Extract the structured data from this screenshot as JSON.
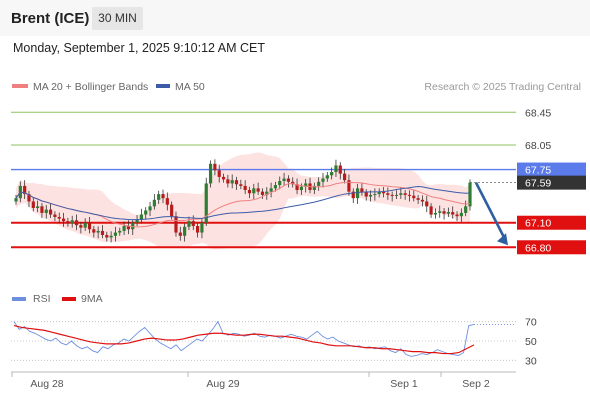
{
  "header": {
    "symbol": "Brent (ICE)",
    "timeframe": "30 MIN"
  },
  "datetime": "Monday, September 1, 2025 9:10:12 AM CET",
  "colors": {
    "price_line": "#5b7bea",
    "support_resistance": "#e01010",
    "upper_level": "#8fc35f",
    "current_price_box": "#333333",
    "arrow": "#2e5f9e",
    "ma20_bollinger": "#f08080",
    "bollinger_fill": "#fde2e2",
    "ma50": "#3d5ca8",
    "rsi": "#6c8fe0",
    "rsi_9ma": "#e01010",
    "candle_up": "#2e7d32",
    "candle_down": "#b71c1c"
  },
  "chart_data": [
    {
      "type": "candlestick",
      "legend": [
        {
          "name": "MA 20 + Bollinger Bands",
          "color": "#f08080"
        },
        {
          "name": "MA 50",
          "color": "#3d5ca8"
        }
      ],
      "credit": "Research © 2025 Trading Central",
      "levels": [
        {
          "label": "68.45",
          "value": 68.45,
          "color": "#8fc35f",
          "kind": "resistance"
        },
        {
          "label": "68.05",
          "value": 68.05,
          "color": "#8fc35f",
          "kind": "resistance"
        },
        {
          "label": "67.75",
          "value": 67.75,
          "color": "#5b7bea",
          "kind": "pivot"
        },
        {
          "label": "67.59",
          "value": 67.59,
          "color": "#333333",
          "kind": "current_price"
        },
        {
          "label": "67.10",
          "value": 67.1,
          "color": "#e01010",
          "kind": "target"
        },
        {
          "label": "66.80",
          "value": 66.8,
          "color": "#e01010",
          "kind": "target"
        }
      ],
      "ylim": [
        66.4,
        68.6
      ],
      "x_ticks": [
        "Aug 28",
        "Aug 29",
        "Sep 1",
        "Sep 2"
      ],
      "forecast_arrow": {
        "from": 67.59,
        "to": 66.8,
        "direction": "down"
      },
      "series_close": [
        67.4,
        67.55,
        67.45,
        67.36,
        67.28,
        67.3,
        67.22,
        67.26,
        67.2,
        67.17,
        67.15,
        67.12,
        67.09,
        67.13,
        67.07,
        67.04,
        67.1,
        67.02,
        66.98,
        67.0,
        66.95,
        66.92,
        66.94,
        66.98,
        67.0,
        67.06,
        67.02,
        67.1,
        67.14,
        67.2,
        67.25,
        67.3,
        67.38,
        67.45,
        67.4,
        67.32,
        67.18,
        66.98,
        66.94,
        67.05,
        67.12,
        67.06,
        66.98,
        67.1,
        67.58,
        67.82,
        67.74,
        67.66,
        67.63,
        67.58,
        67.62,
        67.57,
        67.55,
        67.5,
        67.46,
        67.52,
        67.48,
        67.44,
        67.48,
        67.52,
        67.56,
        67.61,
        67.64,
        67.6,
        67.57,
        67.5,
        67.54,
        67.58,
        67.5,
        67.55,
        67.6,
        67.64,
        67.68,
        67.72,
        67.8,
        67.7,
        67.62,
        67.48,
        67.4,
        67.52,
        67.47,
        67.42,
        67.44,
        67.45,
        67.48,
        67.46,
        67.44,
        67.43,
        67.44,
        67.46,
        67.44,
        67.43,
        67.4,
        67.38,
        67.36,
        67.3,
        67.2,
        67.22,
        67.24,
        67.21,
        67.23,
        67.2,
        67.18,
        67.22,
        67.3,
        67.59
      ]
    },
    {
      "type": "line",
      "legend": [
        {
          "name": "RSI",
          "color": "#6c8fe0"
        },
        {
          "name": "9MA",
          "color": "#e01010"
        }
      ],
      "ylim": [
        20,
        80
      ],
      "y_ticks": [
        70,
        50,
        30
      ],
      "series": [
        {
          "name": "RSI",
          "values": [
            70,
            62,
            65,
            60,
            58,
            55,
            52,
            50,
            53,
            48,
            46,
            50,
            45,
            42,
            44,
            40,
            38,
            44,
            42,
            46,
            48,
            52,
            50,
            55,
            60,
            64,
            58,
            52,
            48,
            45,
            42,
            46,
            40,
            44,
            48,
            52,
            50,
            56,
            62,
            70,
            58,
            56,
            58,
            57,
            55,
            56,
            58,
            55,
            54,
            56,
            55,
            53,
            55,
            57,
            55,
            54,
            52,
            56,
            60,
            55,
            52,
            54,
            50,
            48,
            46,
            44,
            45,
            43,
            44,
            42,
            43,
            44,
            40,
            38,
            42,
            36,
            34,
            35,
            37,
            36,
            38,
            41,
            39,
            37,
            36,
            35,
            38,
            66,
            67
          ]
        },
        {
          "name": "9MA",
          "values": [
            66,
            64,
            63,
            62,
            61,
            59,
            57,
            55,
            53,
            51,
            49,
            48,
            47,
            47,
            47,
            48,
            50,
            52,
            53,
            52,
            51,
            51,
            52,
            54,
            56,
            57,
            58,
            58,
            57,
            56,
            56,
            57,
            57,
            56,
            55,
            55,
            54,
            53,
            51,
            49,
            48,
            46,
            45,
            45,
            45,
            44,
            43,
            43,
            42,
            42,
            41,
            40,
            39,
            39,
            38,
            38,
            37,
            37,
            38,
            42,
            46
          ]
        }
      ]
    }
  ]
}
